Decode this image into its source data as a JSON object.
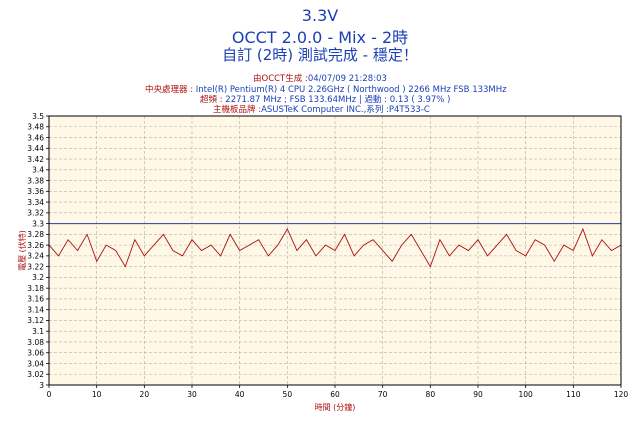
{
  "header": {
    "title": "3.3V",
    "subtitle": "OCCT 2.0.0 - Mix - 2時",
    "status": "自訂 (2時) 測試完成 - 穩定！",
    "generated_label": "由OCCT生成 :",
    "generated_value": "04/07/09 21:28:03",
    "cpu_label": "中央處理器 :",
    "cpu_value": "Intel(R) Pentium(R) 4 CPU 2.26GHz ( Northwood ) 2266 MHz FSB 133MHz",
    "oc_label": "超頻 :",
    "oc_value": "2271.87 MHz ; FSB 133.64MHz | 過動 : 0.13 ( 3.97% )",
    "board_label": "主機板品牌 :",
    "board_value": "ASUSTeK Computer INC.,系列 :P4T533-C"
  },
  "chart_data": {
    "type": "line",
    "xlabel": "時間 (分鐘)",
    "ylabel": "電壓 (伏特)",
    "xlim": [
      0,
      120
    ],
    "ylim": [
      3,
      3.5
    ],
    "x_ticks": [
      0,
      10,
      20,
      30,
      40,
      50,
      60,
      70,
      80,
      90,
      100,
      110,
      120
    ],
    "y_ticks": [
      3,
      3.02,
      3.04,
      3.06,
      3.08,
      3.1,
      3.12,
      3.14,
      3.16,
      3.18,
      3.2,
      3.22,
      3.24,
      3.26,
      3.28,
      3.3,
      3.32,
      3.34,
      3.36,
      3.38,
      3.4,
      3.42,
      3.44,
      3.46,
      3.48,
      3.5
    ],
    "grid": true,
    "reference_line": 3.3,
    "series": [
      {
        "color": "#aa1111",
        "x": [
          0,
          2,
          4,
          6,
          8,
          10,
          12,
          14,
          16,
          18,
          20,
          22,
          24,
          26,
          28,
          30,
          32,
          34,
          36,
          38,
          40,
          42,
          44,
          46,
          48,
          50,
          52,
          54,
          56,
          58,
          60,
          62,
          64,
          66,
          68,
          70,
          72,
          74,
          76,
          78,
          80,
          82,
          84,
          86,
          88,
          90,
          92,
          94,
          96,
          98,
          100,
          102,
          104,
          106,
          108,
          110,
          112,
          114,
          116,
          118,
          120
        ],
        "values": [
          3.26,
          3.24,
          3.27,
          3.25,
          3.28,
          3.23,
          3.26,
          3.25,
          3.22,
          3.27,
          3.24,
          3.26,
          3.28,
          3.25,
          3.24,
          3.27,
          3.25,
          3.26,
          3.24,
          3.28,
          3.25,
          3.26,
          3.27,
          3.24,
          3.26,
          3.29,
          3.25,
          3.27,
          3.24,
          3.26,
          3.25,
          3.28,
          3.24,
          3.26,
          3.27,
          3.25,
          3.23,
          3.26,
          3.28,
          3.25,
          3.22,
          3.27,
          3.24,
          3.26,
          3.25,
          3.27,
          3.24,
          3.26,
          3.28,
          3.25,
          3.24,
          3.27,
          3.26,
          3.23,
          3.26,
          3.25,
          3.29,
          3.24,
          3.27,
          3.25,
          3.26
        ]
      }
    ]
  }
}
